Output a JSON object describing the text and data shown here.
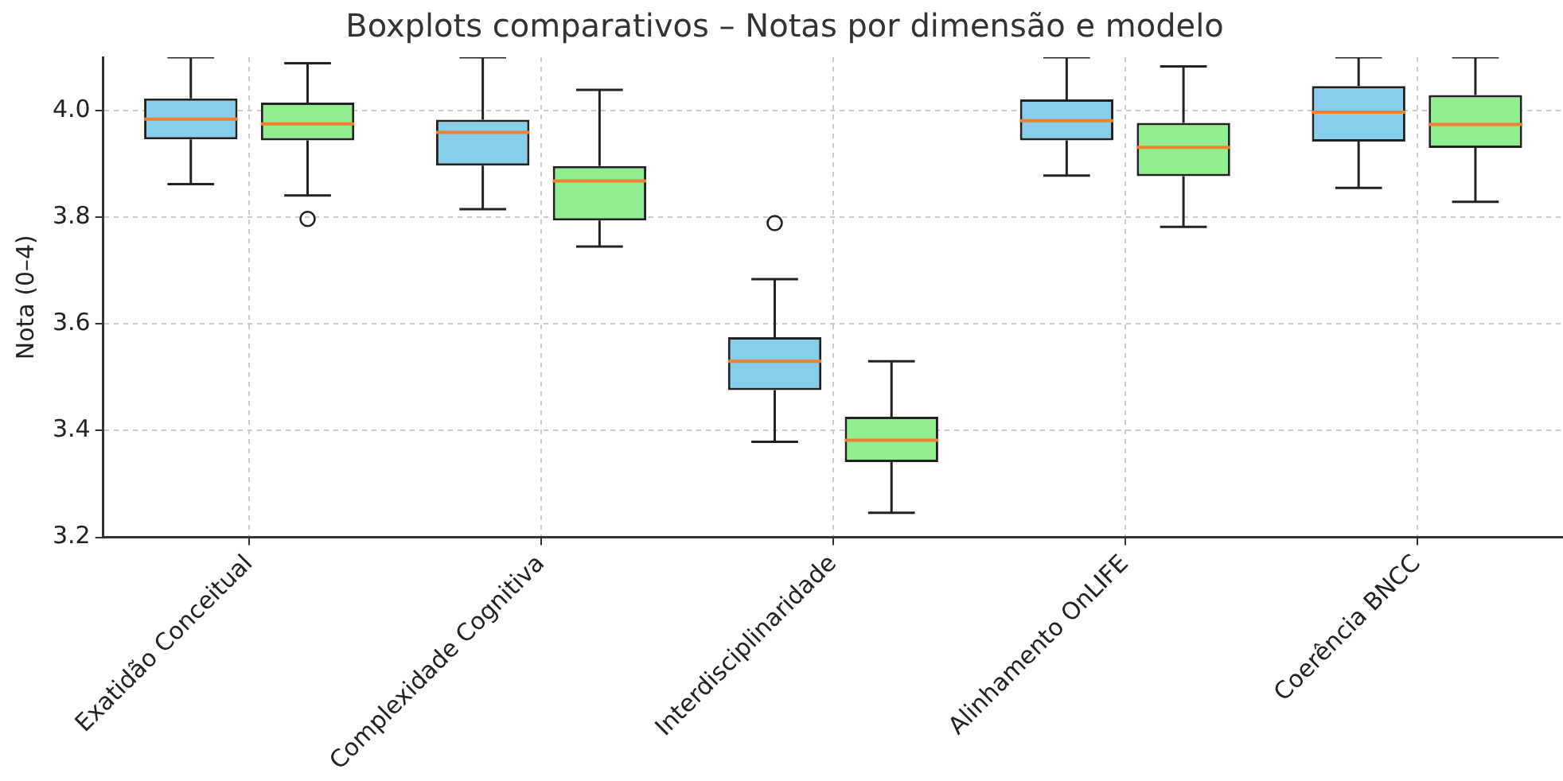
{
  "chart_data": {
    "type": "box",
    "title": "Boxplots comparativos – Notas por dimensão e modelo",
    "ylabel": "Nota (0–4)",
    "categories": [
      "Exatidão Conceitual",
      "Complexidade Cognitiva",
      "Interdisciplinaridade",
      "Alinhamento OnLIFE",
      "Coerência BNCC"
    ],
    "series": [
      {
        "color": "#87ceeb",
        "boxes": [
          {
            "low": 3.862,
            "q1": 3.946,
            "median": 3.984,
            "q3": 4.023,
            "high": 4.1
          },
          {
            "low": 3.815,
            "q1": 3.897,
            "median": 3.959,
            "q3": 3.983,
            "high": 4.1
          },
          {
            "low": 3.379,
            "q1": 3.476,
            "median": 3.53,
            "q3": 3.575,
            "high": 3.684,
            "outliers": [
              3.789
            ]
          },
          {
            "low": 3.878,
            "q1": 3.944,
            "median": 3.981,
            "q3": 4.021,
            "high": 4.1
          },
          {
            "low": 3.855,
            "q1": 3.942,
            "median": 3.997,
            "q3": 4.046,
            "high": 4.1
          }
        ]
      },
      {
        "color": "#90ee90",
        "boxes": [
          {
            "low": 3.841,
            "q1": 3.944,
            "median": 3.975,
            "q3": 4.015,
            "high": 4.089,
            "outliers": [
              3.797
            ]
          },
          {
            "low": 3.745,
            "q1": 3.794,
            "median": 3.868,
            "q3": 3.896,
            "high": 4.039
          },
          {
            "low": 3.246,
            "q1": 3.341,
            "median": 3.382,
            "q3": 3.426,
            "high": 3.53
          },
          {
            "low": 3.782,
            "q1": 3.877,
            "median": 3.931,
            "q3": 3.977,
            "high": 4.083
          },
          {
            "low": 3.829,
            "q1": 3.93,
            "median": 3.974,
            "q3": 4.029,
            "high": 4.1
          }
        ]
      }
    ],
    "ylim": [
      3.2,
      4.1
    ],
    "yticks": [
      3.2,
      3.4,
      3.6,
      3.8,
      {
        "value": 4,
        "label": "4.0"
      }
    ],
    "grid": true
  }
}
